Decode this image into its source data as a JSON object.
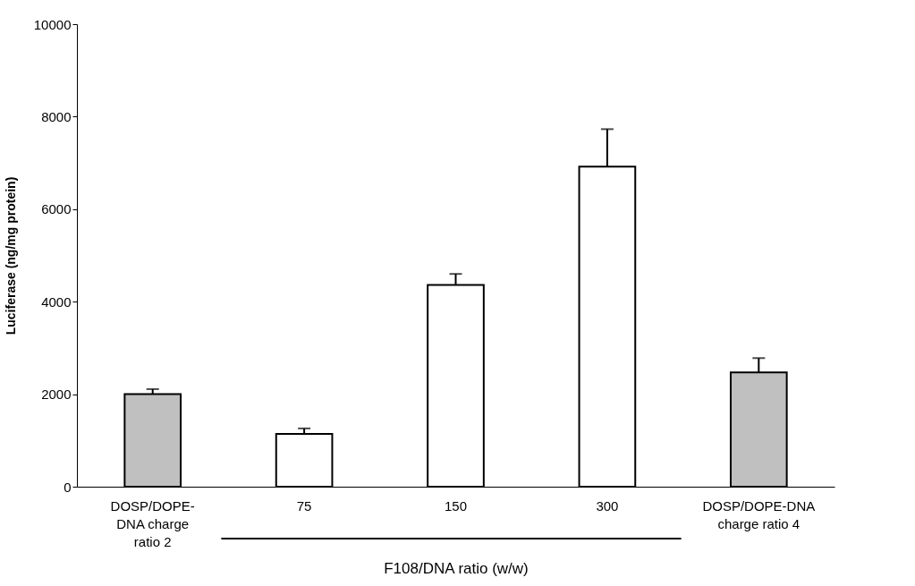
{
  "chart_data": {
    "type": "bar",
    "categories": [
      "DOSP/DOPE-\nDNA charge\nratio 2",
      "75",
      "150",
      "300",
      "DOSP/DOPE-DNA\ncharge ratio 4"
    ],
    "values": [
      2000,
      1140,
      4360,
      6920,
      2470
    ],
    "errors": [
      [
        2000,
        2110
      ],
      [
        1140,
        1260
      ],
      [
        4360,
        4600
      ],
      [
        6920,
        7730
      ],
      [
        2470,
        2780
      ]
    ],
    "colors": [
      "#c0c0c0",
      "#ffffff",
      "#ffffff",
      "#ffffff",
      "#c0c0c0"
    ],
    "xlabel": "F108/DNA ratio (w/w)",
    "ylabel": "Luciferase (ng/mg protein)",
    "ylim": [
      0,
      10000
    ],
    "yticks": [
      0,
      2000,
      4000,
      6000,
      8000,
      10000
    ],
    "grid": false
  }
}
